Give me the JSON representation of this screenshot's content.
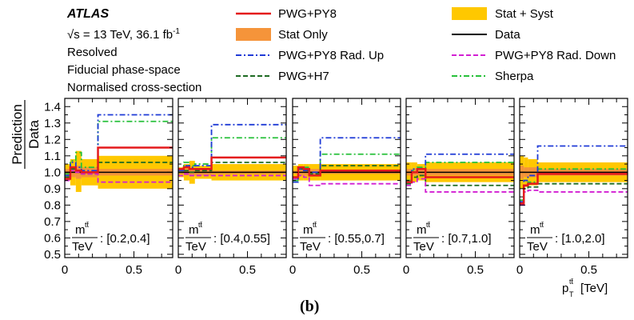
{
  "header": {
    "experiment": "ATLAS",
    "energy_line": "√s = 13 TeV, 36.1 fb",
    "energy_sup": "-1",
    "lines": [
      "Resolved",
      "Fiducial phase-space",
      "Normalised cross-section"
    ]
  },
  "caption": "(b)",
  "colors": {
    "pwg_py8": "#e41a1c",
    "stat_only": "#f5943a",
    "stat_syst": "#ffc800",
    "data": "#000000",
    "rad_up": "#1f3bd6",
    "rad_down": "#d21fd2",
    "pwg_h7": "#1e6b22",
    "sherpa": "#27c03a"
  },
  "legend": [
    {
      "key": "pwg_py8",
      "label": "PWG+PY8",
      "style": "solid"
    },
    {
      "key": "stat_syst",
      "label": "Stat + Syst",
      "style": "box"
    },
    {
      "key": "stat_only",
      "label": "Stat Only",
      "style": "box"
    },
    {
      "key": "data",
      "label": "Data",
      "style": "solid"
    },
    {
      "key": "rad_up",
      "label": "PWG+PY8 Rad. Up",
      "style": "dashdot"
    },
    {
      "key": "rad_down",
      "label": "PWG+PY8 Rad. Down",
      "style": "dashed"
    },
    {
      "key": "pwg_h7",
      "label": "PWG+H7",
      "style": "dashed"
    },
    {
      "key": "sherpa",
      "label": "Sherpa",
      "style": "dashdot"
    }
  ],
  "chart_data": {
    "type": "line",
    "ylabel_top": "Prediction",
    "ylabel_bottom": "Data",
    "xlabel": "p",
    "xlabel_sub": "T",
    "xlabel_sup": "tt̄",
    "xlabel_unit": "[TeV]",
    "ylim": [
      0.48,
      1.45
    ],
    "xlim": [
      0,
      0.78
    ],
    "yticks": [
      "0.5",
      "0.6",
      "0.7",
      "0.8",
      "0.9",
      "1.0",
      "1.1",
      "1.2",
      "1.3",
      "1.4"
    ],
    "xtick_labels": [
      "0",
      "0.5"
    ],
    "slice_var_top": "m",
    "slice_var_sup": "tt̄",
    "slice_var_bottom": "TeV",
    "panels": [
      {
        "range": ": [0.2,0.4]",
        "bins": [
          0,
          0.04,
          0.08,
          0.12,
          0.24,
          0.78
        ],
        "stat_syst": [
          [
            0.95,
            1.05
          ],
          [
            0.92,
            1.08
          ],
          [
            0.88,
            1.13
          ],
          [
            0.92,
            1.08
          ],
          [
            0.9,
            1.1
          ]
        ],
        "stat_only": [
          [
            0.98,
            1.02
          ],
          [
            0.97,
            1.03
          ],
          [
            0.96,
            1.04
          ],
          [
            0.97,
            1.03
          ],
          [
            0.98,
            1.02
          ]
        ],
        "pwg_py8": [
          0.96,
          1.03,
          1.01,
          1.0,
          1.15
        ],
        "rad_up": [
          0.98,
          1.06,
          1.03,
          1.01,
          1.35
        ],
        "rad_down": [
          0.95,
          1.01,
          1.0,
          0.99,
          0.94
        ],
        "pwg_h7": [
          0.97,
          1.02,
          1.01,
          0.99,
          1.06
        ],
        "sherpa": [
          0.99,
          1.07,
          1.12,
          1.03,
          1.31
        ]
      },
      {
        "range": ": [0.4,0.55]",
        "bins": [
          0,
          0.04,
          0.08,
          0.12,
          0.24,
          0.78
        ],
        "stat_syst": [
          [
            0.97,
            1.03
          ],
          [
            0.95,
            1.05
          ],
          [
            0.93,
            1.07
          ],
          [
            0.96,
            1.04
          ],
          [
            0.95,
            1.05
          ]
        ],
        "stat_only": [
          [
            0.99,
            1.01
          ],
          [
            0.98,
            1.02
          ],
          [
            0.98,
            1.02
          ],
          [
            0.98,
            1.02
          ],
          [
            0.99,
            1.01
          ]
        ],
        "pwg_py8": [
          1.02,
          1.03,
          1.02,
          1.02,
          1.09
        ],
        "rad_up": [
          1.01,
          1.04,
          1.03,
          1.04,
          1.29
        ],
        "rad_down": [
          0.98,
          0.99,
          0.98,
          0.98,
          0.98
        ],
        "pwg_h7": [
          1.0,
          1.01,
          1.0,
          1.01,
          1.06
        ],
        "sherpa": [
          1.02,
          1.06,
          1.04,
          1.05,
          1.21
        ]
      },
      {
        "range": ": [0.55,0.7]",
        "bins": [
          0,
          0.04,
          0.08,
          0.12,
          0.2,
          0.78
        ],
        "stat_syst": [
          [
            0.96,
            1.04
          ],
          [
            0.95,
            1.05
          ],
          [
            0.95,
            1.05
          ],
          [
            0.95,
            1.05
          ],
          [
            0.95,
            1.05
          ]
        ],
        "stat_only": [
          [
            0.99,
            1.01
          ],
          [
            0.98,
            1.02
          ],
          [
            0.98,
            1.02
          ],
          [
            0.98,
            1.02
          ],
          [
            0.99,
            1.01
          ]
        ],
        "pwg_py8": [
          0.97,
          1.03,
          1.02,
          0.98,
          1.01
        ],
        "rad_up": [
          0.94,
          1.02,
          1.01,
          1.0,
          1.21
        ],
        "rad_down": [
          0.96,
          0.98,
          0.97,
          0.92,
          0.93
        ],
        "pwg_h7": [
          0.97,
          1.02,
          1.01,
          0.99,
          1.04
        ],
        "sherpa": [
          0.95,
          1.02,
          1.03,
          0.98,
          1.11
        ]
      },
      {
        "range": ": [0.7,1.0]",
        "bins": [
          0,
          0.04,
          0.08,
          0.14,
          0.78
        ],
        "stat_syst": [
          [
            0.94,
            1.06
          ],
          [
            0.94,
            1.06
          ],
          [
            0.95,
            1.05
          ],
          [
            0.94,
            1.06
          ]
        ],
        "stat_only": [
          [
            0.98,
            1.02
          ],
          [
            0.98,
            1.02
          ],
          [
            0.98,
            1.02
          ],
          [
            0.98,
            1.02
          ]
        ],
        "pwg_py8": [
          0.94,
          1.0,
          1.02,
          0.97
        ],
        "rad_up": [
          0.94,
          1.02,
          1.02,
          1.11
        ],
        "rad_down": [
          0.92,
          0.94,
          0.96,
          0.88
        ],
        "pwg_h7": [
          0.93,
          0.97,
          0.98,
          0.92
        ],
        "sherpa": [
          0.95,
          1.01,
          1.03,
          1.06
        ]
      },
      {
        "range": ": [1.0,2.0]",
        "bins": [
          0,
          0.03,
          0.06,
          0.13,
          0.78
        ],
        "stat_syst": [
          [
            0.9,
            1.1
          ],
          [
            0.91,
            1.09
          ],
          [
            0.92,
            1.08
          ],
          [
            0.94,
            1.06
          ]
        ],
        "stat_only": [
          [
            0.96,
            1.04
          ],
          [
            0.97,
            1.03
          ],
          [
            0.97,
            1.03
          ],
          [
            0.98,
            1.02
          ]
        ],
        "pwg_py8": [
          0.81,
          0.92,
          0.93,
          0.99
        ],
        "rad_up": [
          0.82,
          0.95,
          0.98,
          1.16
        ],
        "rad_down": [
          0.8,
          0.88,
          0.89,
          0.88
        ],
        "pwg_h7": [
          0.82,
          0.9,
          0.91,
          0.93
        ],
        "sherpa": [
          0.83,
          0.92,
          0.94,
          1.02
        ]
      }
    ]
  }
}
